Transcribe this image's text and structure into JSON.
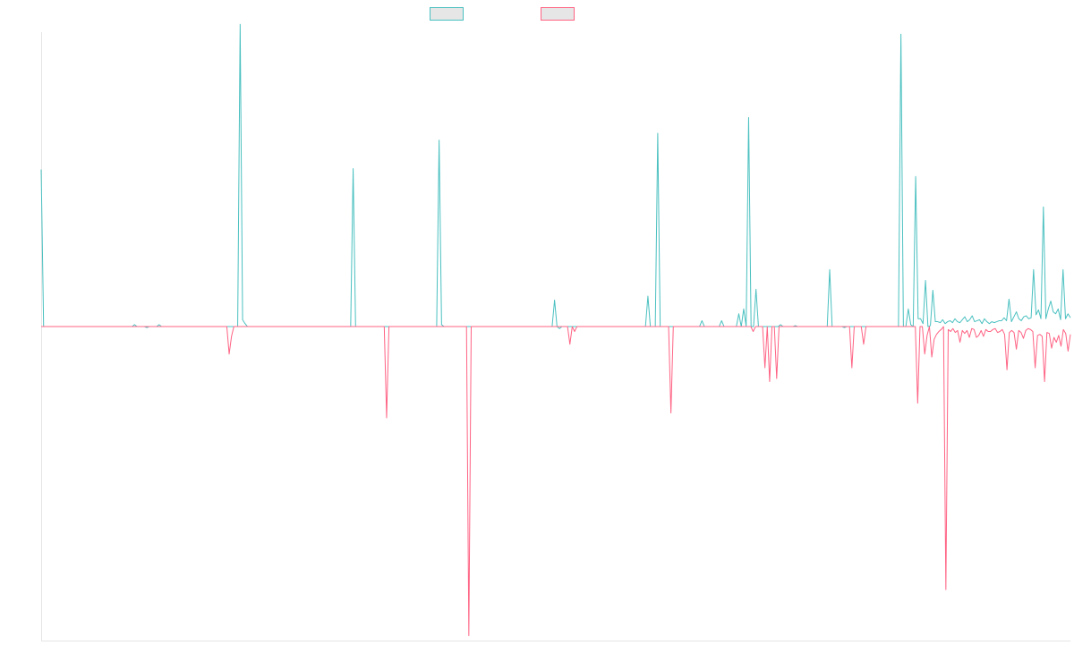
{
  "chart_data": {
    "type": "line",
    "title": "",
    "xlabel": "",
    "ylabel": "",
    "grid": false,
    "legend_position": "top",
    "ylim": [
      -32,
      30
    ],
    "series": [
      {
        "name": "",
        "color": "#4bc0c0",
        "values": [
          16.0,
          0,
          0,
          0,
          0,
          0,
          0,
          0,
          0,
          0,
          0,
          0,
          0,
          0,
          0,
          0,
          0,
          0,
          0,
          0,
          0,
          0,
          0,
          0,
          0,
          0,
          0,
          0,
          0,
          0,
          0,
          0,
          0,
          0,
          0,
          0,
          0,
          0,
          0.2,
          0,
          0,
          0,
          0,
          -0.1,
          0,
          0,
          0,
          0,
          0.2,
          0,
          0,
          0,
          0,
          0,
          0,
          0,
          0,
          0,
          0,
          0,
          0,
          0,
          0,
          0,
          0,
          0,
          0,
          0,
          0,
          0,
          0,
          0,
          0,
          0,
          0,
          0,
          0,
          0,
          0,
          0,
          0,
          30.8,
          0.7,
          0.3,
          0,
          0,
          0,
          0,
          0,
          0,
          0,
          0,
          0,
          0,
          0,
          0,
          0,
          0,
          0,
          0,
          0,
          0,
          0,
          0,
          0,
          0,
          0,
          0,
          0,
          0,
          0,
          0,
          0,
          0,
          0,
          0,
          0,
          0,
          0,
          0,
          0,
          0,
          0,
          0,
          0,
          0,
          0,
          16.1,
          0,
          0,
          0,
          0,
          0,
          0,
          0,
          0,
          0,
          0,
          0,
          0,
          0,
          0,
          0,
          0,
          0,
          0,
          0,
          0,
          0,
          0,
          0,
          0,
          0,
          0,
          0,
          0,
          0,
          0,
          0,
          0,
          0,
          0,
          19.0,
          0.2,
          0,
          0,
          0,
          0,
          0,
          0,
          0,
          0,
          0,
          0,
          0,
          0,
          0,
          0,
          0,
          0,
          0,
          0,
          0,
          0,
          0,
          0,
          0,
          0,
          0,
          0,
          0,
          0,
          0,
          0,
          0,
          0,
          0,
          0,
          0,
          0,
          0,
          0,
          0,
          0,
          0,
          0,
          0,
          0,
          0,
          2.7,
          0,
          -0.2,
          0,
          0,
          0,
          0,
          0,
          0,
          0,
          0,
          0,
          0,
          0,
          0,
          0,
          0,
          0,
          0,
          0,
          0,
          0,
          0,
          0,
          0,
          0,
          0,
          0,
          0,
          0,
          0,
          0,
          0,
          0,
          0,
          0,
          0,
          0,
          3.1,
          0,
          0,
          0,
          19.7,
          0,
          0,
          0,
          0,
          0,
          0,
          0,
          0,
          0,
          0,
          0,
          0,
          0,
          0,
          0,
          0,
          0,
          0.6,
          0,
          0,
          0,
          0,
          0,
          0,
          0,
          0.6,
          0,
          0,
          0,
          0,
          0,
          0,
          1.3,
          0,
          1.8,
          0,
          21.3,
          0,
          0,
          3.8,
          0,
          0,
          0,
          0,
          0,
          0,
          0,
          0,
          0,
          0.2,
          0,
          0,
          0,
          0,
          0,
          0.1,
          0,
          0,
          0,
          0,
          0,
          0,
          0,
          0,
          0,
          0,
          0,
          0,
          0,
          5.8,
          0,
          0,
          0,
          0,
          0,
          -0.1,
          0,
          0,
          0,
          0,
          0,
          0,
          0,
          0,
          0,
          0,
          0,
          0,
          0,
          0,
          0,
          0,
          0,
          0,
          0,
          0,
          0,
          0,
          29.8,
          0,
          0,
          1.8,
          0.2,
          0,
          15.3,
          0.8,
          0.8,
          0.3,
          4.7,
          0,
          0.1,
          3.7,
          0.5,
          0.5,
          0.4,
          0.7,
          0.3,
          0.5,
          0.6,
          0.4,
          0.8,
          0.5,
          0.4,
          0.7,
          1.0,
          0.5,
          0.7,
          1.1,
          0.5,
          0.6,
          0.7,
          0.3,
          0.8,
          0.5,
          0.3,
          0.5,
          0.4,
          0.5,
          0.6,
          0.6,
          0.9,
          0.6,
          2.8,
          0.5,
          1.0,
          1.5,
          0.8,
          0.6,
          1.0,
          1.1,
          0.8,
          0.9,
          5.8,
          1.2,
          1.7,
          0.8,
          12.2,
          0.8,
          1.8,
          2.6,
          1.5,
          1.3,
          1.8,
          0.7,
          5.8,
          0.8,
          1.3,
          0.9
        ]
      },
      {
        "name": "",
        "color": "#ff6384",
        "values": [
          0,
          0,
          0,
          0,
          0,
          0,
          0,
          0,
          0,
          0,
          0,
          0,
          0,
          0,
          0,
          0,
          0,
          0,
          0,
          0,
          0,
          0,
          0,
          0,
          0,
          0,
          0,
          0,
          0,
          0,
          0,
          0,
          0,
          0,
          0,
          0,
          0,
          0,
          0,
          0,
          0,
          0,
          0,
          0,
          0,
          0,
          0,
          0,
          0,
          0,
          0,
          0,
          0,
          0,
          0,
          0,
          0,
          0,
          0,
          0,
          0,
          0,
          0,
          0,
          0,
          0,
          0,
          0,
          0,
          0,
          0,
          0,
          0,
          0,
          0,
          0,
          0,
          0,
          0,
          0,
          -2.8,
          -1.0,
          0,
          0,
          0,
          0,
          0,
          0,
          0,
          0,
          0,
          0,
          0,
          0,
          0,
          0,
          0,
          0,
          0,
          0,
          0,
          0,
          0,
          0,
          0,
          0,
          0,
          0,
          0,
          0,
          0,
          0,
          0,
          0,
          0,
          0,
          0,
          0,
          0,
          0,
          0,
          0,
          0,
          0,
          0,
          0,
          0,
          0,
          0,
          0,
          0,
          0,
          0,
          0,
          0,
          0,
          0,
          0,
          0,
          0,
          0,
          0,
          0,
          0,
          0,
          0,
          0,
          -9.3,
          0,
          0,
          0,
          0,
          0,
          0,
          0,
          0,
          0,
          0,
          0,
          0,
          0,
          0,
          0,
          0,
          0,
          0,
          0,
          0,
          0,
          0,
          0,
          0,
          0,
          0,
          0,
          0,
          0,
          0,
          0,
          0,
          0,
          0,
          -31.5,
          0,
          0,
          0,
          0,
          0,
          0,
          0,
          0,
          0,
          0,
          0,
          0,
          0,
          0,
          0,
          0,
          0,
          0,
          0,
          0,
          0,
          0,
          0,
          0,
          0,
          0,
          0,
          0,
          0,
          0,
          0,
          0,
          0,
          0,
          0,
          0,
          0,
          0,
          0,
          0,
          0,
          0,
          -1.8,
          0,
          -0.5,
          0,
          0,
          0,
          0,
          0,
          0,
          0,
          0,
          0,
          0,
          0,
          0,
          0,
          0,
          0,
          0,
          0,
          0,
          0,
          0,
          0,
          0,
          0,
          0,
          0,
          0,
          0,
          0,
          0,
          0,
          0,
          0,
          0,
          0,
          0,
          0,
          0,
          0,
          0,
          0,
          -8.8,
          0,
          0,
          0,
          0,
          0,
          0,
          0,
          0,
          0,
          0,
          0,
          0,
          0,
          0,
          0,
          0,
          0,
          0,
          0,
          0,
          0,
          0,
          0,
          0,
          0,
          0,
          0,
          0,
          0,
          0,
          0,
          0,
          0,
          0,
          -0.5,
          0,
          0,
          0,
          0,
          -4.2,
          0,
          -5.6,
          0,
          0,
          -5.3,
          0,
          0,
          0,
          0,
          0,
          0,
          0,
          0,
          0,
          0,
          0,
          0,
          0,
          0,
          0,
          0,
          0,
          0,
          0,
          0,
          0,
          0,
          0,
          0,
          0,
          0,
          0,
          0,
          0,
          0,
          0,
          -4.2,
          0,
          0,
          0,
          0,
          -1.8,
          0,
          0,
          0,
          0,
          0,
          0,
          0,
          0,
          0,
          0,
          0,
          0,
          0,
          0,
          0,
          0,
          0,
          0,
          0,
          0,
          0,
          0,
          -7.8,
          0,
          0,
          -2.8,
          -0.9,
          0,
          -3.1,
          -1.3,
          -0.8,
          -0.5,
          -0.3,
          0,
          -26.8,
          -0.3,
          -0.5,
          -0.2,
          -0.6,
          -0.4,
          -1.6,
          -0.4,
          -0.7,
          -0.4,
          -1.1,
          -0.2,
          -0.3,
          -1.1,
          -0.9,
          -0.4,
          -1.0,
          -0.3,
          -0.5,
          -0.5,
          -0.3,
          -0.2,
          -0.6,
          -0.5,
          -0.3,
          -0.8,
          -4.4,
          -0.6,
          -0.4,
          -0.6,
          -2.3,
          -0.4,
          -0.6,
          -1.2,
          -0.4,
          -0.2,
          -0.3,
          -0.5,
          -4.2,
          -0.9,
          -0.8,
          -1.0,
          -5.6,
          -0.6,
          -0.7,
          -2.2,
          -1.1,
          -1.6,
          -0.9,
          -2.0,
          -0.3,
          -0.7,
          -2.5,
          -0.8
        ]
      }
    ]
  }
}
